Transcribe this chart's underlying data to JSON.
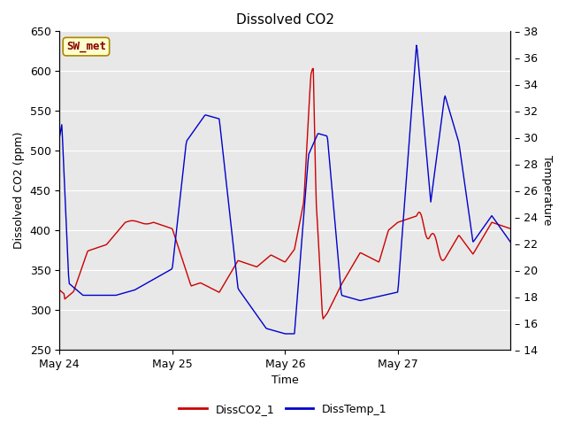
{
  "title": "Dissolved CO2",
  "xlabel": "Time",
  "ylabel_left": "Dissolved CO2 (ppm)",
  "ylabel_right": "Temperature",
  "ylim_left": [
    250,
    650
  ],
  "ylim_right": [
    14,
    38
  ],
  "yticks_left": [
    250,
    300,
    350,
    400,
    450,
    500,
    550,
    600,
    650
  ],
  "yticks_right": [
    14,
    16,
    18,
    20,
    22,
    24,
    26,
    28,
    30,
    32,
    34,
    36,
    38
  ],
  "xtick_labels": [
    "May 24",
    "May 25",
    "May 26",
    "May 27"
  ],
  "plot_bg_color": "#e8e8e8",
  "line1_color": "#cc0000",
  "line2_color": "#0000cc",
  "legend_label1": "DissCO2_1",
  "legend_label2": "DissTemp_1",
  "annotation_text": "SW_met",
  "annotation_bg": "#ffffcc",
  "annotation_border": "#aa8800",
  "annotation_text_color": "#880000",
  "title_fontsize": 11,
  "axis_label_fontsize": 9,
  "tick_fontsize": 9,
  "legend_fontsize": 9
}
